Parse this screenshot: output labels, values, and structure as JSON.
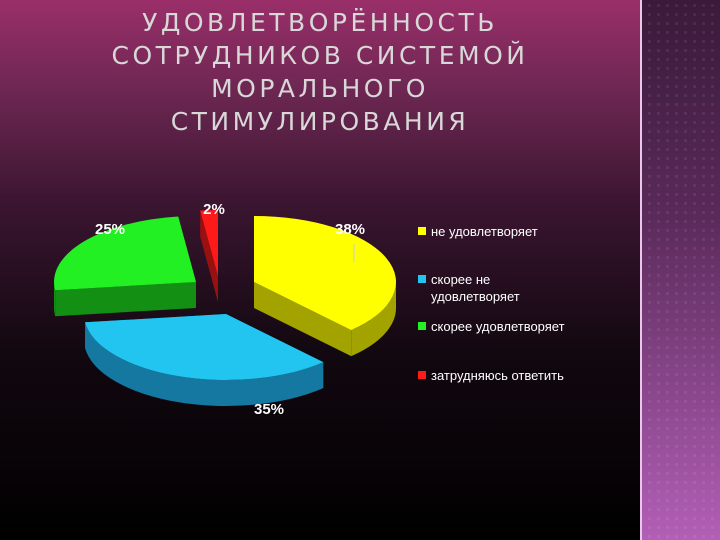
{
  "slide": {
    "title_lines": [
      "УДОВЛЕТВОРЁННОСТЬ",
      "СОТРУДНИКОВ СИСТЕМОЙ",
      "МОРАЛЬНОГО",
      "СТИМУЛИРОВАНИЯ"
    ]
  },
  "chart_data": {
    "type": "pie",
    "title": "УДОВЛЕТВОРЁННОСТЬ СОТРУДНИКОВ СИСТЕМОЙ МОРАЛЬНОГО СТИМУЛИРОВАНИЯ",
    "legend_position": "right",
    "slices": [
      {
        "name": "не удовлетворяет",
        "value": 38,
        "label": "38%",
        "color": "#ffff00",
        "side_color": "#a3a300"
      },
      {
        "name": "скорее не удовлетворяет",
        "value": 35,
        "label": "35%",
        "color": "#22c5f0",
        "side_color": "#1478a0"
      },
      {
        "name": "скорее удовлетворяет",
        "value": 25,
        "label": "25%",
        "color": "#22f022",
        "side_color": "#138f13"
      },
      {
        "name": "затрудняюсь ответить",
        "value": 2,
        "label": "2%",
        "color": "#ff1a1a",
        "side_color": "#991010"
      }
    ],
    "legend": [
      {
        "lines": [
          "не удовлетворяет"
        ]
      },
      {
        "lines": [
          "скорее не",
          "удовлетворяет"
        ]
      },
      {
        "lines": [
          "скорее удовлетворяет"
        ]
      },
      {
        "lines": [
          "затрудняюсь ответить"
        ]
      }
    ]
  }
}
